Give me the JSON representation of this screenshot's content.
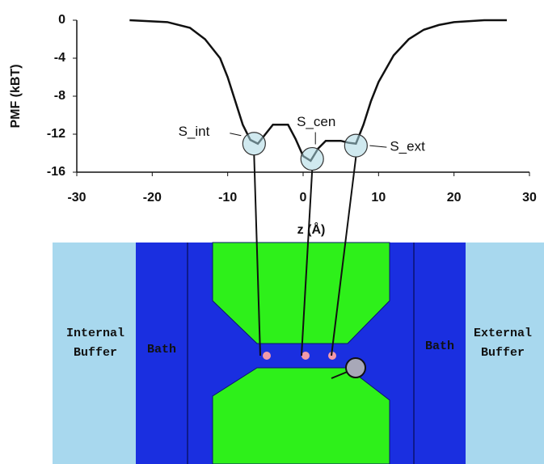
{
  "chart_data": {
    "type": "line",
    "x_label": "z (Å)",
    "y_label": "PMF (kBT)",
    "xlim": [
      -30,
      30
    ],
    "xticks": [
      -30,
      -20,
      -10,
      0,
      10,
      20,
      30
    ],
    "ylim": [
      -16,
      0
    ],
    "yticks": [
      0,
      -4,
      -8,
      -12,
      -16
    ],
    "series": [
      {
        "color": "#111111",
        "x": [
          -23,
          -18,
          -15,
          -13,
          -11,
          -10,
          -9,
          -8,
          -7,
          -6,
          -5,
          -4,
          -2,
          -1,
          0,
          1,
          2,
          3,
          5,
          6,
          7,
          8,
          9,
          10,
          12,
          14,
          16,
          18,
          20,
          24,
          27
        ],
        "values": [
          0,
          -0.2,
          -0.8,
          -2,
          -4,
          -6,
          -8.5,
          -11,
          -12.6,
          -13,
          -12,
          -11,
          -11,
          -12.5,
          -14.3,
          -14.8,
          -13.5,
          -12.7,
          -12.7,
          -12.9,
          -13,
          -11,
          -8.5,
          -6.5,
          -3.7,
          -2,
          -1,
          -0.5,
          -0.2,
          0,
          0
        ]
      }
    ],
    "annotations": [
      {
        "text": "S_int",
        "x": -6.5,
        "y": -13
      },
      {
        "text": "S_cen",
        "x": 1.2,
        "y": -14.6
      },
      {
        "text": "S_ext",
        "x": 7,
        "y": -13.2
      }
    ]
  },
  "diagram": {
    "internal_buffer": [
      "Internal",
      "Buffer"
    ],
    "bath_left": "Bath",
    "bath_right": "Bath",
    "external_buffer": [
      "External",
      "Buffer"
    ]
  }
}
